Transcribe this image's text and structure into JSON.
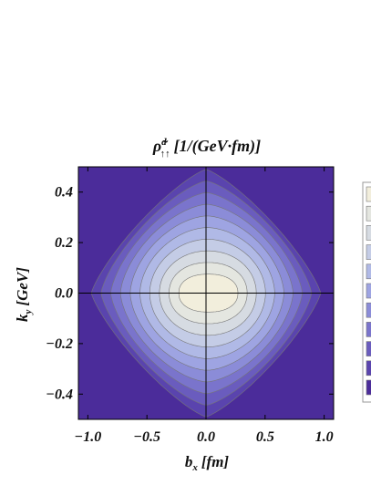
{
  "chart_data": {
    "type": "contour",
    "title": {
      "symbol": "ρ̃",
      "sub": "↑↑",
      "sup": "d",
      "unit": "[1/(GeV·fm)]"
    },
    "x_label": {
      "symbol": "b",
      "sub": "x",
      "unit": "[fm]"
    },
    "y_label": {
      "symbol": "k",
      "sub": "y",
      "unit": "[GeV]"
    },
    "xlim": [
      -1.08,
      1.08
    ],
    "ylim": [
      -0.5,
      0.5
    ],
    "xticks": [
      {
        "value": -1.0,
        "label": "−1.0"
      },
      {
        "value": -0.5,
        "label": "−0.5"
      },
      {
        "value": 0,
        "label": "0.0"
      },
      {
        "value": 0.5,
        "label": "0.5"
      },
      {
        "value": 1.0,
        "label": "1.0"
      }
    ],
    "yticks": [
      {
        "value": -0.4,
        "label": "−0.4"
      },
      {
        "value": -0.2,
        "label": "−0.2"
      },
      {
        "value": 0,
        "label": "0.0"
      },
      {
        "value": 0.2,
        "label": "0.2"
      },
      {
        "value": 0.4,
        "label": "0.4"
      }
    ],
    "level_colors": [
      "#4b2c9a",
      "#5a44ae",
      "#6a5cbe",
      "#7a74cc",
      "#8b8cd8",
      "#9ea4e2",
      "#b0b9e6",
      "#c4cce6",
      "#d6dbe2",
      "#e4e6e0",
      "#f2eedc"
    ]
  }
}
